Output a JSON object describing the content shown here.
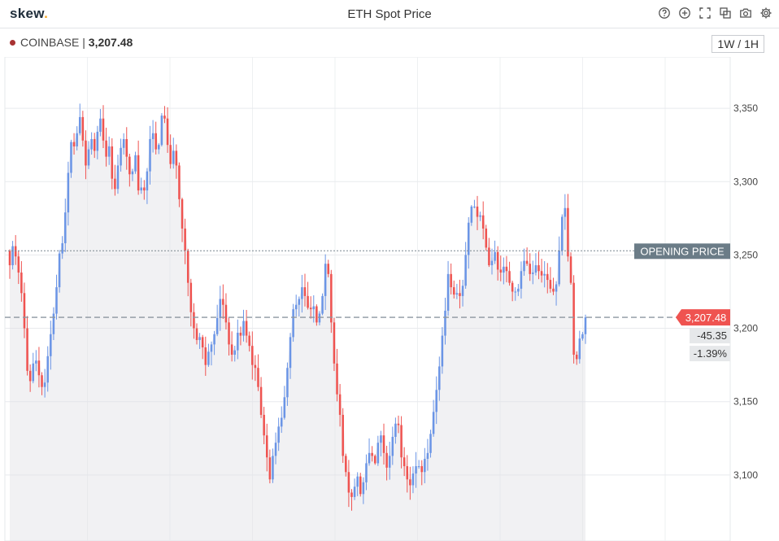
{
  "header": {
    "logo": "skew",
    "logo_dot": ".",
    "title": "ETH Spot Price"
  },
  "toolbar": {
    "icons": [
      "help-icon",
      "add-icon",
      "fullscreen-icon",
      "compare-icon",
      "camera-icon",
      "gear-icon"
    ]
  },
  "source": {
    "exchange": "COINBASE",
    "separator": "|",
    "price": "3,207.48"
  },
  "range": {
    "label": "1W / 1H"
  },
  "colors": {
    "up": "#6b95e6",
    "down": "#ef5350",
    "area": "#dfe1e5",
    "opening_tag": "#6b7c87"
  },
  "chart_data": {
    "type": "candlestick",
    "ylim": [
      3055,
      3385
    ],
    "y_ticks": [
      3100,
      3150,
      3200,
      3250,
      3300,
      3350
    ],
    "y_tick_labels": [
      "3,100",
      "3,150",
      "3,200",
      "3,250",
      "3,300",
      "3,350"
    ],
    "opening_price": {
      "label": "OPENING PRICE",
      "value": 3252.83
    },
    "last_price": {
      "label": "3,207.48",
      "value": 3207.48
    },
    "change_abs": "-45.35",
    "change_pct": "-1.39%",
    "closes": [
      3243,
      3256,
      3249,
      3238,
      3224,
      3200,
      3171,
      3164,
      3176,
      3178,
      3168,
      3160,
      3163,
      3181,
      3196,
      3210,
      3228,
      3251,
      3258,
      3279,
      3306,
      3327,
      3324,
      3333,
      3344,
      3328,
      3311,
      3322,
      3329,
      3321,
      3334,
      3343,
      3328,
      3317,
      3324,
      3302,
      3295,
      3311,
      3323,
      3329,
      3317,
      3305,
      3307,
      3318,
      3294,
      3296,
      3294,
      3307,
      3329,
      3333,
      3322,
      3325,
      3345,
      3343,
      3325,
      3312,
      3321,
      3311,
      3288,
      3268,
      3253,
      3231,
      3211,
      3200,
      3192,
      3194,
      3187,
      3175,
      3184,
      3189,
      3196,
      3207,
      3220,
      3216,
      3204,
      3189,
      3182,
      3185,
      3197,
      3195,
      3205,
      3195,
      3188,
      3175,
      3173,
      3160,
      3141,
      3127,
      3112,
      3097,
      3113,
      3122,
      3133,
      3139,
      3153,
      3173,
      3194,
      3213,
      3216,
      3220,
      3228,
      3222,
      3214,
      3213,
      3215,
      3204,
      3210,
      3222,
      3244,
      3237,
      3204,
      3176,
      3155,
      3141,
      3113,
      3102,
      3088,
      3085,
      3092,
      3099,
      3087,
      3095,
      3108,
      3115,
      3113,
      3108,
      3122,
      3127,
      3115,
      3105,
      3113,
      3126,
      3135,
      3134,
      3112,
      3106,
      3097,
      3093,
      3101,
      3106,
      3106,
      3102,
      3111,
      3115,
      3128,
      3143,
      3158,
      3174,
      3195,
      3212,
      3237,
      3228,
      3223,
      3224,
      3222,
      3229,
      3250,
      3272,
      3283,
      3283,
      3276,
      3277,
      3268,
      3255,
      3243,
      3246,
      3252,
      3240,
      3238,
      3242,
      3239,
      3231,
      3225,
      3225,
      3227,
      3239,
      3246,
      3244,
      3237,
      3238,
      3243,
      3239,
      3236,
      3237,
      3233,
      3227,
      3225,
      3230,
      3253,
      3276,
      3282,
      3249,
      3231,
      3182,
      3179,
      3193,
      3196,
      3207.48
    ]
  }
}
